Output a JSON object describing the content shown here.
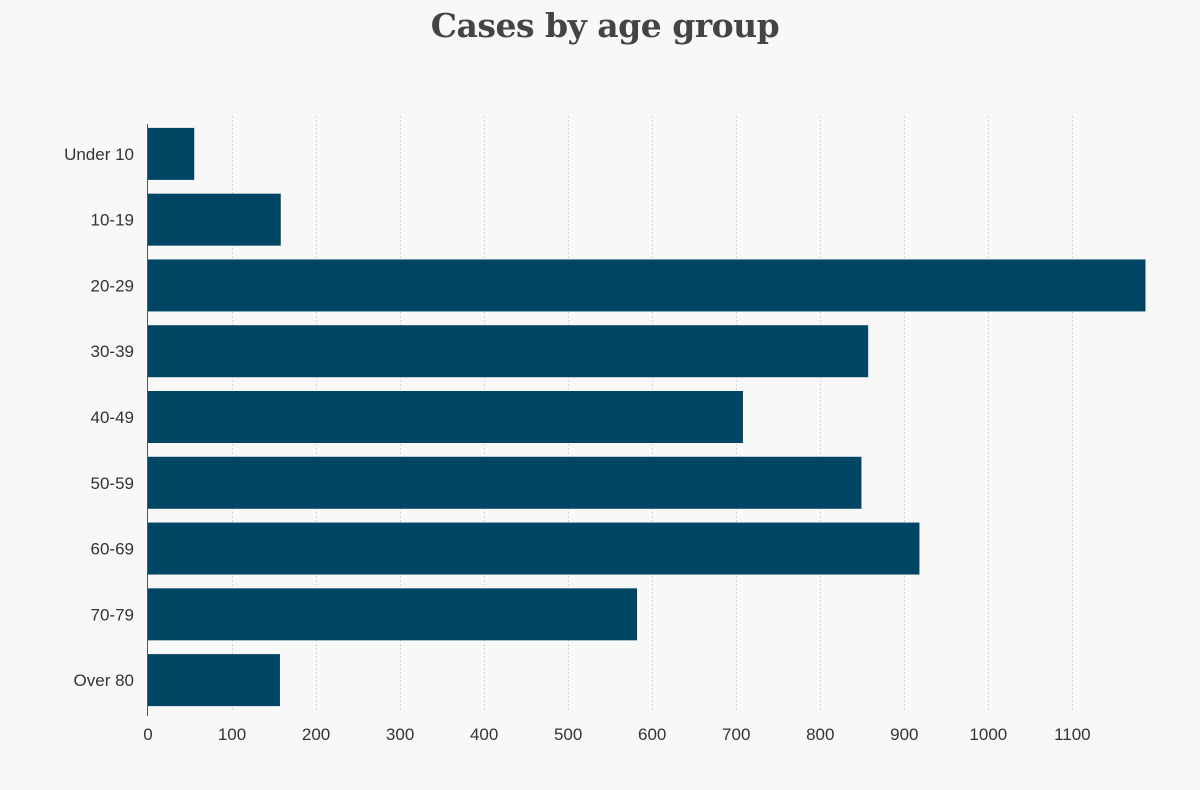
{
  "chart_data": {
    "type": "bar",
    "orientation": "horizontal",
    "title": "Cases by age group",
    "xlabel": "",
    "ylabel": "",
    "categories": [
      "Under 10",
      "10-19",
      "20-29",
      "30-39",
      "40-49",
      "50-59",
      "60-69",
      "70-79",
      "Over 80"
    ],
    "values": [
      55,
      158,
      1187,
      857,
      708,
      849,
      918,
      582,
      157
    ],
    "xlim": [
      0,
      1190
    ],
    "xticks": [
      0,
      100,
      200,
      300,
      400,
      500,
      600,
      700,
      800,
      900,
      1000,
      1100
    ],
    "grid": "vertical dashed",
    "legend": "none",
    "bar_color": "#004564"
  }
}
